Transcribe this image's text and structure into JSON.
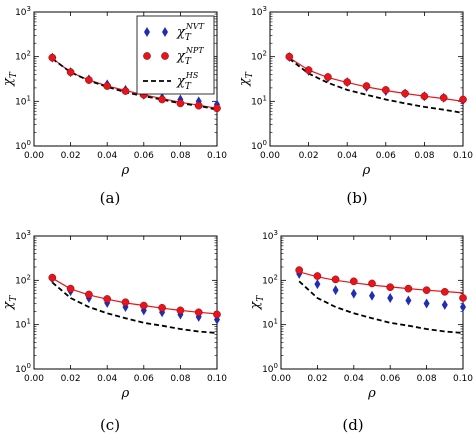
{
  "chart_data": [
    {
      "type": "scatter",
      "panel_label": "(a)",
      "xlabel": "ρ",
      "ylabel": "χ_T",
      "yscale": "log",
      "xlim": [
        0.0,
        0.1
      ],
      "ylim": [
        1,
        1000
      ],
      "x_ticks": [
        "0.00",
        "0.02",
        "0.04",
        "0.06",
        "0.08",
        "0.10"
      ],
      "y_ticks": [
        "10^0",
        "10^1",
        "10^2",
        "10^3"
      ],
      "legend": "top-right",
      "x": [
        0.01,
        0.02,
        0.03,
        0.04,
        0.05,
        0.06,
        0.07,
        0.08,
        0.09,
        0.1
      ],
      "series": [
        {
          "name": "χ_T^NVT",
          "marker": "diamond",
          "color": "#1f2fb5",
          "values": [
            95,
            45,
            31,
            24,
            18,
            14,
            12,
            11,
            10,
            8.5
          ]
        },
        {
          "name": "χ_T^NPT",
          "marker": "circle",
          "color": "#e8141b",
          "values": [
            95,
            45,
            30,
            22,
            17,
            14,
            11,
            9,
            8,
            7
          ]
        },
        {
          "name": "",
          "style": "solid-line",
          "color": "#e8141b",
          "values": [
            92,
            45,
            30,
            22,
            17.5,
            14,
            11.5,
            9.5,
            8.2,
            7
          ]
        },
        {
          "name": "χ_T^HS",
          "style": "dashed-line",
          "color": "#000000",
          "values": [
            90,
            45,
            29,
            21,
            16,
            13,
            11,
            9,
            8,
            6.5
          ]
        }
      ]
    },
    {
      "type": "scatter",
      "panel_label": "(b)",
      "xlabel": "ρ",
      "ylabel": "χ_T",
      "yscale": "log",
      "xlim": [
        0.0,
        0.1
      ],
      "ylim": [
        1,
        1000
      ],
      "x_ticks": [
        "0.00",
        "0.02",
        "0.04",
        "0.06",
        "0.08",
        "0.10"
      ],
      "y_ticks": [
        "10^0",
        "10^1",
        "10^2",
        "10^3"
      ],
      "x": [
        0.01,
        0.02,
        0.03,
        0.04,
        0.05,
        0.06,
        0.07,
        0.08,
        0.09,
        0.1
      ],
      "series": [
        {
          "name": "χ_T^NVT",
          "marker": "diamond",
          "color": "#1f2fb5",
          "values": [
            98,
            48,
            34,
            27,
            21,
            17,
            15,
            13,
            12,
            10.5
          ]
        },
        {
          "name": "χ_T^NPT",
          "marker": "circle",
          "color": "#e8141b",
          "values": [
            100,
            50,
            35,
            27,
            22,
            18,
            15,
            13,
            12,
            11
          ]
        },
        {
          "name": "",
          "style": "solid-line",
          "color": "#e8141b",
          "values": [
            95,
            50,
            34,
            26.5,
            21,
            17.5,
            15,
            13,
            11.5,
            10
          ]
        },
        {
          "name": "χ_T^HS",
          "style": "dashed-line",
          "color": "#000000",
          "values": [
            90,
            42,
            26,
            18,
            14,
            11,
            9,
            7.5,
            6.5,
            5.5
          ]
        }
      ]
    },
    {
      "type": "scatter",
      "panel_label": "(c)",
      "xlabel": "ρ",
      "ylabel": "χ_T",
      "yscale": "log",
      "xlim": [
        0.0,
        0.1
      ],
      "ylim": [
        1,
        1000
      ],
      "x_ticks": [
        "0.00",
        "0.02",
        "0.04",
        "0.06",
        "0.08",
        "0.10"
      ],
      "y_ticks": [
        "10^0",
        "10^1",
        "10^2",
        "10^3"
      ],
      "x": [
        0.01,
        0.02,
        0.03,
        0.04,
        0.05,
        0.06,
        0.07,
        0.08,
        0.09,
        0.1
      ],
      "series": [
        {
          "name": "χ_T^NVT",
          "marker": "diamond",
          "color": "#1f2fb5",
          "values": [
            110,
            57,
            40,
            31,
            25,
            21,
            19,
            17,
            15,
            13
          ]
        },
        {
          "name": "χ_T^NPT",
          "marker": "circle",
          "color": "#e8141b",
          "values": [
            115,
            65,
            48,
            38,
            32,
            27,
            24,
            21,
            19,
            17
          ]
        },
        {
          "name": "",
          "style": "solid-line",
          "color": "#e8141b",
          "values": [
            112,
            64,
            47,
            37.5,
            31,
            27,
            23.5,
            21,
            19,
            17.5
          ]
        },
        {
          "name": "χ_T^HS",
          "style": "dashed-line",
          "color": "#000000",
          "values": [
            90,
            40,
            25,
            18,
            14,
            11,
            9.5,
            8,
            7,
            6.5
          ]
        }
      ]
    },
    {
      "type": "scatter",
      "panel_label": "(d)",
      "xlabel": "ρ",
      "ylabel": "χ_T",
      "yscale": "log",
      "xlim": [
        0.0,
        0.1
      ],
      "ylim": [
        1,
        1000
      ],
      "x_ticks": [
        "0.00",
        "0.02",
        "0.04",
        "0.06",
        "0.08",
        "0.10"
      ],
      "y_ticks": [
        "10^0",
        "10^1",
        "10^2",
        "10^3"
      ],
      "x": [
        0.01,
        0.02,
        0.03,
        0.04,
        0.05,
        0.06,
        0.07,
        0.08,
        0.09,
        0.1
      ],
      "series": [
        {
          "name": "χ_T^NVT",
          "marker": "diamond",
          "color": "#1f2fb5",
          "values": [
            140,
            82,
            60,
            50,
            45,
            40,
            35,
            30,
            28,
            25
          ]
        },
        {
          "name": "χ_T^NPT",
          "marker": "circle",
          "color": "#e8141b",
          "values": [
            170,
            125,
            105,
            95,
            85,
            70,
            65,
            60,
            55,
            40
          ]
        },
        {
          "name": "",
          "style": "solid-line",
          "color": "#e8141b",
          "values": [
            155,
            120,
            100,
            88,
            78,
            71,
            65,
            60,
            56,
            52
          ]
        },
        {
          "name": "χ_T^HS",
          "style": "dashed-line",
          "color": "#000000",
          "values": [
            95,
            40,
            25,
            18,
            14,
            11,
            9.5,
            8,
            7,
            6.5
          ]
        }
      ]
    }
  ]
}
